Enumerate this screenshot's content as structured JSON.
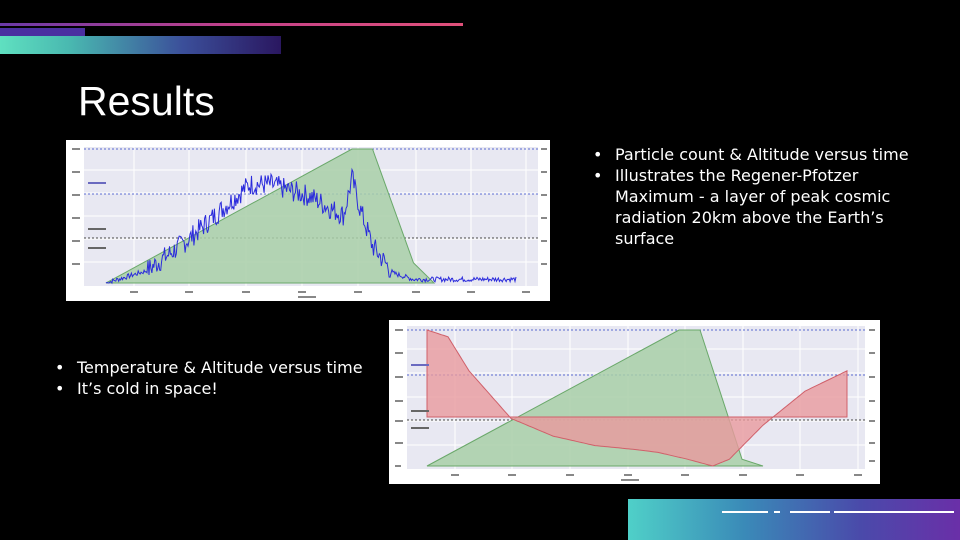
{
  "slide": {
    "title": "Results",
    "bullets_right": [
      "Particle count & Altitude versus time",
      "Illustrates the Regener-Pfotzer Maximum -  a layer of peak cosmic radiation 20km above the Earth’s surface"
    ],
    "bullets_left": [
      "Temperature & Altitude versus time",
      "It’s cold in space!"
    ]
  },
  "colors": {
    "altitude_fill": "#a8cfa8",
    "altitude_line": "#6aa86a",
    "particle_line": "#2b2bdc",
    "temperature_fill": "#e89a9e",
    "temperature_line": "#d0606a",
    "plot_bg": "#e8e8f2",
    "layer_line_blue": "#5a6ad0",
    "layer_line_dark": "#444444"
  },
  "chart_data": [
    {
      "type": "area",
      "series": [
        {
          "values_kind": "altitude",
          "x": [
            0,
            0.6,
            0.65,
            0.75,
            0.8
          ],
          "y": [
            0,
            1,
            1,
            0.15,
            0
          ]
        },
        {
          "values_kind": "particle_count",
          "x": [
            0,
            0.1,
            0.2,
            0.3,
            0.35,
            0.4,
            0.45,
            0.5,
            0.55,
            0.58,
            0.6,
            0.62,
            0.65,
            0.7,
            0.75,
            0.8,
            0.9,
            1.0
          ],
          "y": [
            0,
            0.1,
            0.35,
            0.65,
            0.8,
            0.8,
            0.75,
            0.7,
            0.6,
            0.55,
            0.85,
            0.6,
            0.3,
            0.08,
            0.03,
            0.03,
            0.03,
            0.03
          ]
        }
      ],
      "layers": [
        "Ozone Layer",
        "Stratosphere",
        "Troposphere"
      ],
      "grid": true
    },
    {
      "type": "area",
      "series": [
        {
          "values_kind": "altitude",
          "x": [
            0,
            0.6,
            0.65,
            0.75,
            0.8
          ],
          "y": [
            0,
            1,
            1,
            0.05,
            0
          ]
        },
        {
          "values_kind": "temperature",
          "x": [
            0,
            0.05,
            0.1,
            0.2,
            0.3,
            0.4,
            0.5,
            0.55,
            0.62,
            0.68,
            0.72,
            0.8,
            0.9,
            1.0
          ],
          "y": [
            1,
            0.95,
            0.7,
            0.35,
            0.22,
            0.15,
            0.12,
            0.1,
            0.05,
            0.0,
            0.05,
            0.3,
            0.55,
            0.7
          ]
        }
      ],
      "layers": [
        "Ozone Layer",
        "Stratosphere",
        "Troposphere"
      ],
      "grid": true
    }
  ]
}
